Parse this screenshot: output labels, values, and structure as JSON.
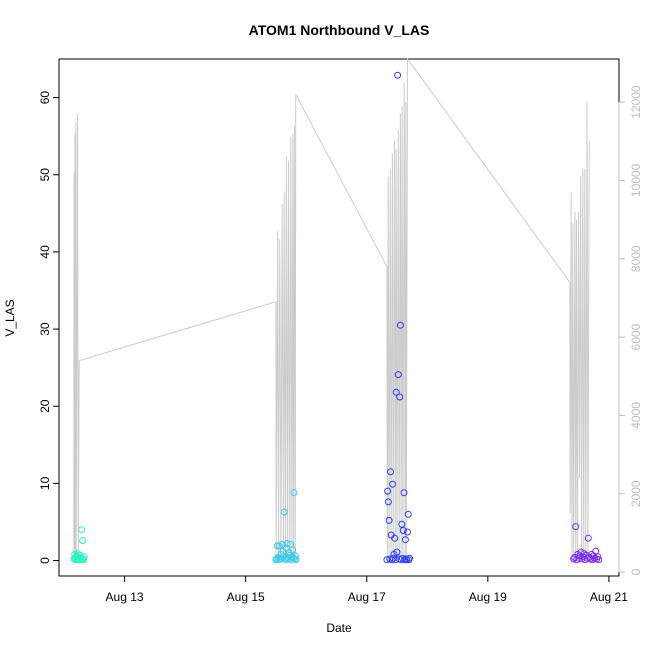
{
  "chart_data": {
    "type": "scatter",
    "title": "ATOM1 Northbound V_LAS",
    "xlabel": "Date",
    "ylabel": "V_LAS",
    "x_axis": {
      "type": "date",
      "lim": [
        "2024-08-11T22:00",
        "2024-08-21T04:00"
      ],
      "ticks": [
        "Aug 13",
        "Aug 15",
        "Aug 17",
        "Aug 19",
        "Aug 21"
      ]
    },
    "y_axis_left": {
      "lim": [
        -2,
        65
      ],
      "ticks": [
        "0",
        "10",
        "20",
        "30",
        "40",
        "50",
        "60"
      ]
    },
    "y_axis_right": {
      "lim": [
        -100,
        13100
      ],
      "ticks": [
        "0",
        "2000",
        "4000",
        "6000",
        "8000",
        "10000",
        "12000"
      ],
      "color": "#bdbdbd"
    },
    "grid": false,
    "clusters": [
      {
        "day": "Aug 12",
        "start": "2024-08-12T04:00",
        "end": "2024-08-12T08:00",
        "color": "#2ef2c2",
        "values": [
          0.2,
          0.8,
          0.3,
          0.1,
          0.5,
          0.6,
          0.2,
          0.9,
          0.1,
          0.4,
          0.3,
          0.7,
          0.2,
          0.1,
          4.0,
          0.3,
          2.6,
          0.2,
          0.1,
          0.5
        ]
      },
      {
        "day": "Aug 15",
        "start": "2024-08-15T12:00",
        "end": "2024-08-15T20:00",
        "color": "#3ccbea",
        "values": [
          0.1,
          0.2,
          1.9,
          0.4,
          0.1,
          1.9,
          0.3,
          0.8,
          0.2,
          2.1,
          1.2,
          0.5,
          6.3,
          0.3,
          0.1,
          1.6,
          2.2,
          0.4,
          0.2,
          1.0,
          0.7,
          2.1,
          0.1,
          0.5,
          1.4,
          0.3,
          8.8,
          0.2,
          0.6,
          0.1
        ]
      },
      {
        "day": "Aug 17",
        "start": "2024-08-17T08:00",
        "end": "2024-08-17T17:00",
        "color": "#2e3cf0",
        "values": [
          0.1,
          9.0,
          7.6,
          5.2,
          0.2,
          11.5,
          3.3,
          0.1,
          9.9,
          0.3,
          0.8,
          2.9,
          0.1,
          21.8,
          1.1,
          62.9,
          24.1,
          0.2,
          21.2,
          30.5,
          0.1,
          4.7,
          0.3,
          3.9,
          8.8,
          0.1,
          2.7,
          0.2,
          0.1,
          3.7,
          6.0,
          0.1,
          0.3
        ]
      },
      {
        "day": "Aug 20",
        "start": "2024-08-20T10:00",
        "end": "2024-08-20T20:00",
        "color": "#7a2ef0",
        "values": [
          0.2,
          0.4,
          4.4,
          0.1,
          0.8,
          0.3,
          0.6,
          1.1,
          0.2,
          0.5,
          0.9,
          0.1,
          0.7,
          0.3,
          2.9,
          0.4,
          0.2,
          0.8,
          0.1,
          0.6,
          0.3,
          1.2,
          0.2,
          0.5,
          0.1
        ]
      }
    ],
    "line_series": {
      "axis": "right",
      "color": "#cccccc",
      "points": [
        [
          "2024-08-12T03:50",
          300
        ],
        [
          "2024-08-12T04:00",
          10200
        ],
        [
          "2024-08-12T04:10",
          300
        ],
        [
          "2024-08-12T04:20",
          11200
        ],
        [
          "2024-08-12T04:30",
          300
        ],
        [
          "2024-08-12T04:40",
          11500
        ],
        [
          "2024-08-12T04:50",
          300
        ],
        [
          "2024-08-12T05:20",
          11700
        ],
        [
          "2024-08-12T05:40",
          300
        ],
        [
          "2024-08-12T06:00",
          5400
        ],
        [
          "2024-08-15T12:00",
          6900
        ],
        [
          "2024-08-15T12:05",
          300
        ],
        [
          "2024-08-15T12:40",
          8700
        ],
        [
          "2024-08-15T13:00",
          300
        ],
        [
          "2024-08-15T13:30",
          8500
        ],
        [
          "2024-08-15T14:00",
          300
        ],
        [
          "2024-08-15T14:30",
          9400
        ],
        [
          "2024-08-15T15:00",
          300
        ],
        [
          "2024-08-15T15:20",
          9700
        ],
        [
          "2024-08-15T15:50",
          300
        ],
        [
          "2024-08-15T16:10",
          10600
        ],
        [
          "2024-08-15T16:40",
          300
        ],
        [
          "2024-08-15T17:00",
          10500
        ],
        [
          "2024-08-15T17:30",
          300
        ],
        [
          "2024-08-15T17:50",
          11100
        ],
        [
          "2024-08-15T18:20",
          300
        ],
        [
          "2024-08-15T18:40",
          11200
        ],
        [
          "2024-08-15T19:00",
          300
        ],
        [
          "2024-08-15T19:20",
          11400
        ],
        [
          "2024-08-15T19:40",
          400
        ],
        [
          "2024-08-15T19:50",
          12200
        ],
        [
          "2024-08-17T08:00",
          7800
        ],
        [
          "2024-08-17T08:10",
          300
        ],
        [
          "2024-08-17T08:30",
          10100
        ],
        [
          "2024-08-17T08:50",
          300
        ],
        [
          "2024-08-17T09:20",
          10300
        ],
        [
          "2024-08-17T09:40",
          300
        ],
        [
          "2024-08-17T10:10",
          10700
        ],
        [
          "2024-08-17T10:30",
          300
        ],
        [
          "2024-08-17T11:00",
          11000
        ],
        [
          "2024-08-17T11:20",
          300
        ],
        [
          "2024-08-17T11:40",
          10800
        ],
        [
          "2024-08-17T12:00",
          300
        ],
        [
          "2024-08-17T12:30",
          11300
        ],
        [
          "2024-08-17T12:50",
          300
        ],
        [
          "2024-08-17T13:20",
          11700
        ],
        [
          "2024-08-17T13:40",
          400
        ],
        [
          "2024-08-17T14:00",
          11900
        ],
        [
          "2024-08-17T14:20",
          300
        ],
        [
          "2024-08-17T14:50",
          12500
        ],
        [
          "2024-08-17T15:10",
          300
        ],
        [
          "2024-08-17T15:30",
          12000
        ],
        [
          "2024-08-17T15:40",
          400
        ],
        [
          "2024-08-17T16:10",
          13100
        ],
        [
          "2024-08-20T08:30",
          7400
        ],
        [
          "2024-08-20T08:40",
          1500
        ],
        [
          "2024-08-20T09:00",
          9700
        ],
        [
          "2024-08-20T09:20",
          300
        ],
        [
          "2024-08-20T09:40",
          8900
        ],
        [
          "2024-08-20T10:00",
          300
        ],
        [
          "2024-08-20T10:30",
          9200
        ],
        [
          "2024-08-20T10:50",
          300
        ],
        [
          "2024-08-20T11:10",
          9000
        ],
        [
          "2024-08-20T11:30",
          400
        ],
        [
          "2024-08-20T12:00",
          9200
        ],
        [
          "2024-08-20T12:20",
          2400
        ],
        [
          "2024-08-20T12:50",
          10100
        ],
        [
          "2024-08-20T13:10",
          300
        ],
        [
          "2024-08-20T13:40",
          10300
        ],
        [
          "2024-08-20T14:00",
          300
        ],
        [
          "2024-08-20T14:30",
          10300
        ],
        [
          "2024-08-20T14:50",
          300
        ],
        [
          "2024-08-20T15:20",
          12000
        ],
        [
          "2024-08-20T15:40",
          400
        ],
        [
          "2024-08-20T16:10",
          11000
        ]
      ]
    }
  }
}
